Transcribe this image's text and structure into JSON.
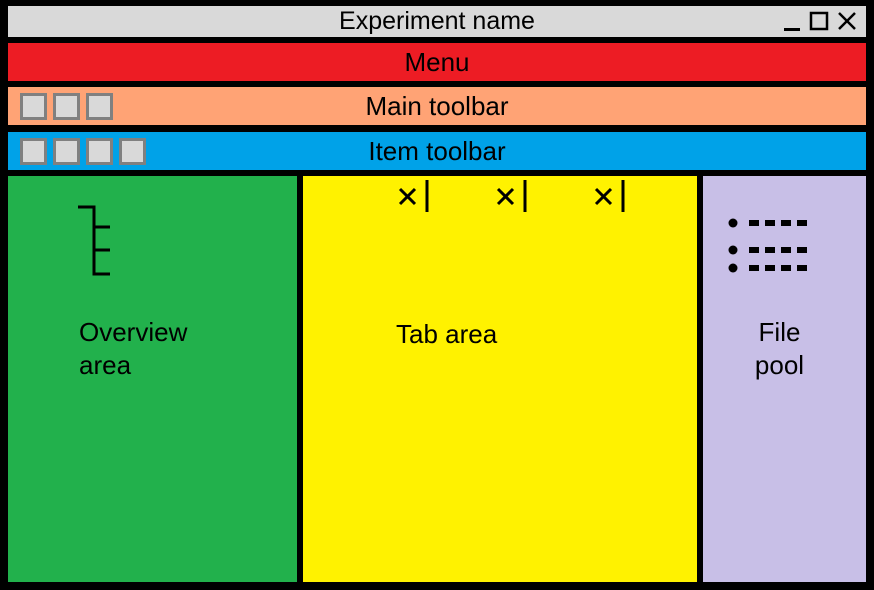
{
  "titlebar": {
    "title": "Experiment name",
    "controls": [
      "minimize-icon",
      "maximize-icon",
      "close-icon"
    ],
    "color": "#d9d9d9"
  },
  "menu": {
    "label": "Menu",
    "color": "#ed1c24"
  },
  "main_toolbar": {
    "label": "Main toolbar",
    "button_count": 3,
    "color": "#ffa375"
  },
  "item_toolbar": {
    "label": "Item toolbar",
    "button_count": 4,
    "color": "#00a2e8"
  },
  "panels": {
    "overview": {
      "label": "Overview\narea",
      "icon": "tree-icon",
      "color": "#22b14c"
    },
    "tab_area": {
      "label": "Tab area",
      "tab_count": 3,
      "tab_icon": "close-icon",
      "color": "#fff200"
    },
    "file_pool": {
      "label": "File\npool",
      "icon": "list-icon",
      "color": "#c8bfe7"
    }
  }
}
